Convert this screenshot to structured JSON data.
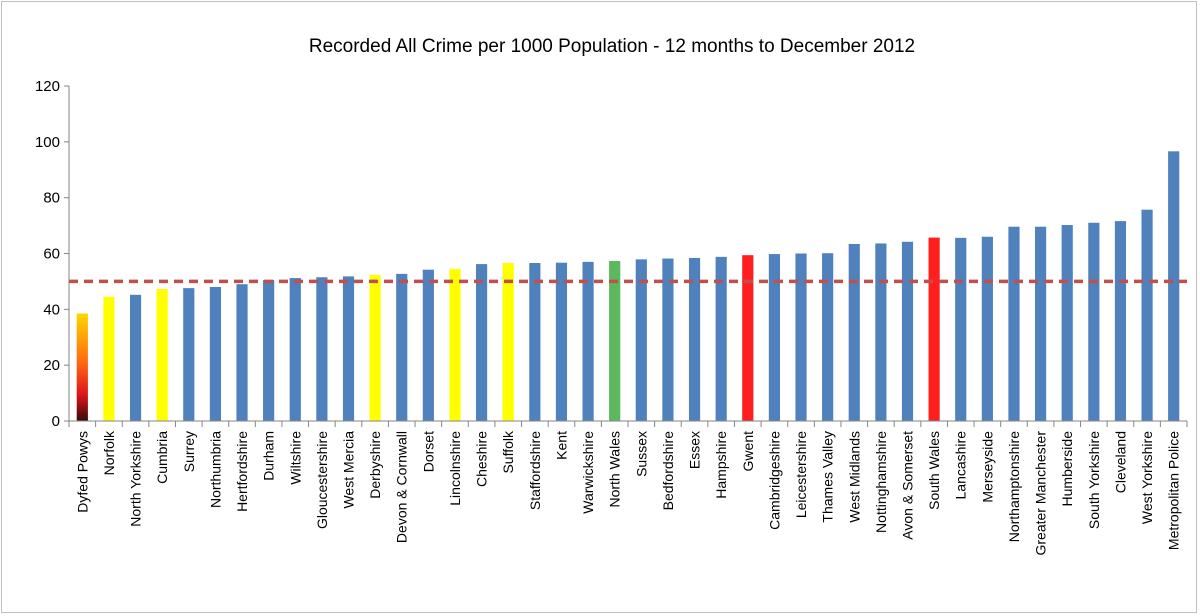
{
  "chart_data": {
    "type": "bar",
    "title": "Recorded All Crime per 1000 Population - 12 months to December 2012",
    "xlabel": "",
    "ylabel": "",
    "ylim": [
      0,
      120
    ],
    "yticks": [
      0,
      20,
      40,
      60,
      80,
      100,
      120
    ],
    "grid": false,
    "legend": "none",
    "reference_line": {
      "value": 50,
      "style": "dashed",
      "color": "#c0504d"
    },
    "categories": [
      "Dyfed Powys",
      "Norfolk",
      "North Yorkshire",
      "Cumbria",
      "Surrey",
      "Northumbria",
      "Hertfordshire",
      "Durham",
      "Wiltshire",
      "Gloucestershire",
      "West Mercia",
      "Derbyshire",
      "Devon & Cornwall",
      "Dorset",
      "Lincolnshire",
      "Cheshire",
      "Suffolk",
      "Staffordshire",
      "Kent",
      "Warwickshire",
      "North Wales",
      "Sussex",
      "Bedfordshire",
      "Essex",
      "Hampshire",
      "Gwent",
      "Cambridgeshire",
      "Leicestershire",
      "Thames Valley",
      "West Midlands",
      "Nottinghamshire",
      "Avon & Somerset",
      "South Wales",
      "Lancashire",
      "Merseyside",
      "Northamptonshire",
      "Greater Manchester",
      "Humberside",
      "South Yorkshire",
      "Cleveland",
      "West Yorkshire",
      "Metropolitan Police"
    ],
    "values": [
      38.5,
      44.5,
      45.2,
      47.3,
      47.6,
      48.0,
      49.0,
      50.5,
      51.2,
      51.5,
      51.8,
      52.3,
      52.7,
      54.2,
      54.5,
      56.2,
      56.6,
      56.6,
      56.7,
      57.0,
      57.3,
      57.9,
      58.2,
      58.4,
      58.8,
      59.4,
      59.8,
      60.0,
      60.1,
      63.4,
      63.6,
      64.2,
      65.7,
      65.6,
      66.0,
      69.6,
      69.6,
      70.2,
      71.0,
      71.6,
      75.7,
      96.6
    ],
    "bar_colors": [
      "gradient",
      "#ffff00",
      "#4f81bd",
      "#ffff00",
      "#4f81bd",
      "#4f81bd",
      "#4f81bd",
      "#4f81bd",
      "#4f81bd",
      "#4f81bd",
      "#4f81bd",
      "#ffff00",
      "#4f81bd",
      "#4f81bd",
      "#ffff00",
      "#4f81bd",
      "#ffff00",
      "#4f81bd",
      "#4f81bd",
      "#4f81bd",
      "#5cb85c",
      "#4f81bd",
      "#4f81bd",
      "#4f81bd",
      "#4f81bd",
      "#ff1f1f",
      "#4f81bd",
      "#4f81bd",
      "#4f81bd",
      "#4f81bd",
      "#4f81bd",
      "#4f81bd",
      "#ff1f1f",
      "#4f81bd",
      "#4f81bd",
      "#4f81bd",
      "#4f81bd",
      "#4f81bd",
      "#4f81bd",
      "#4f81bd",
      "#4f81bd",
      "#4f81bd"
    ]
  }
}
